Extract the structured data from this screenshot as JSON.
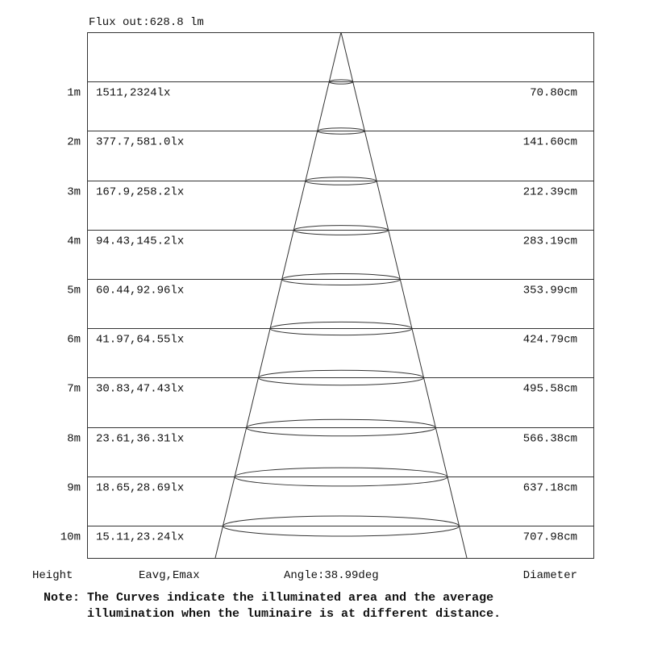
{
  "flux_label": "Flux out:628.8 lm",
  "rows": [
    {
      "height": "1m",
      "illum": "1511,2324lx",
      "diameter": "70.80cm"
    },
    {
      "height": "2m",
      "illum": "377.7,581.0lx",
      "diameter": "141.60cm"
    },
    {
      "height": "3m",
      "illum": "167.9,258.2lx",
      "diameter": "212.39cm"
    },
    {
      "height": "4m",
      "illum": "94.43,145.2lx",
      "diameter": "283.19cm"
    },
    {
      "height": "5m",
      "illum": "60.44,92.96lx",
      "diameter": "353.99cm"
    },
    {
      "height": "6m",
      "illum": "41.97,64.55lx",
      "diameter": "424.79cm"
    },
    {
      "height": "7m",
      "illum": "30.83,47.43lx",
      "diameter": "495.58cm"
    },
    {
      "height": "8m",
      "illum": "23.61,36.31lx",
      "diameter": "566.38cm"
    },
    {
      "height": "9m",
      "illum": "18.65,28.69lx",
      "diameter": "637.18cm"
    },
    {
      "height": "10m",
      "illum": "15.11,23.24lx",
      "diameter": "707.98cm"
    }
  ],
  "footer": {
    "height_label": "Height",
    "illum_label": "Eavg,Emax",
    "angle_label": "Angle:38.99deg",
    "diameter_label": "Diameter"
  },
  "note": {
    "prefix": "Note:",
    "line1": "The Curves indicate the illuminated area and the average",
    "line2": "illumination when the luminaire is at different distance."
  },
  "colors": {
    "line": "#333333",
    "text": "#111111"
  }
}
